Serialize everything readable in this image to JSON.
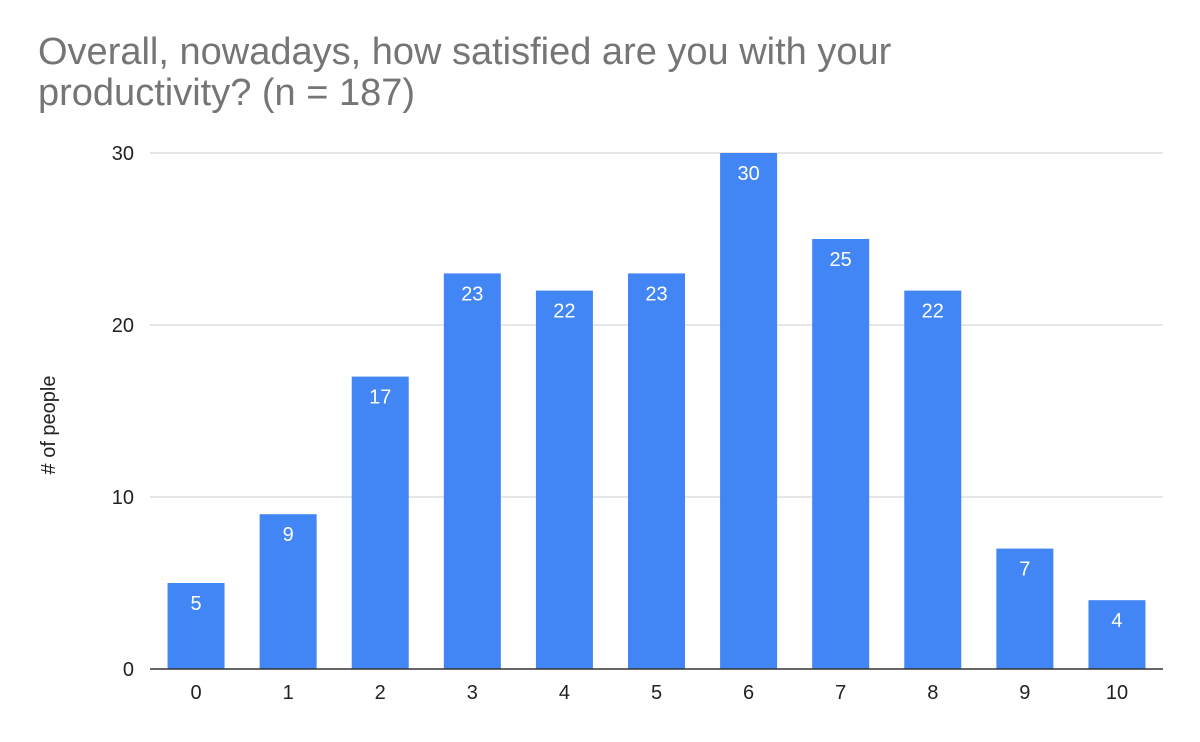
{
  "chart_data": {
    "type": "bar",
    "title": "Overall, nowadays, how satisfied are you with your productivity? (n = 187)",
    "xlabel": "",
    "ylabel": "# of people",
    "categories": [
      "0",
      "1",
      "2",
      "3",
      "4",
      "5",
      "6",
      "7",
      "8",
      "9",
      "10"
    ],
    "values": [
      5,
      9,
      17,
      23,
      22,
      23,
      30,
      25,
      22,
      7,
      4
    ],
    "ylim": [
      0,
      30
    ],
    "yticks": [
      0,
      10,
      20,
      30
    ],
    "grid": true,
    "legend": "none",
    "data_labels": true,
    "bar_color": "#4285f4"
  }
}
